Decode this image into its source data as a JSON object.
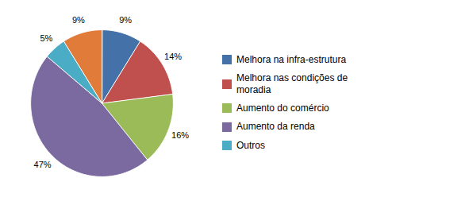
{
  "chart_data": {
    "type": "pie",
    "categories": [
      "Melhora na infra-estrutura",
      "Melhora nas condições de\nmoradia",
      "Aumento do comércio",
      "Aumento da renda",
      "Outros",
      null
    ],
    "values": [
      9,
      14,
      16,
      47,
      5,
      9
    ],
    "value_labels": [
      "9%",
      "14%",
      "16%",
      "47%",
      "5%",
      "9%"
    ],
    "colors": [
      "#4472a8",
      "#c0504d",
      "#9bbb59",
      "#7a6aa0",
      "#4bacc6",
      "#e07b39"
    ],
    "data_labels": true,
    "legend": "right"
  }
}
